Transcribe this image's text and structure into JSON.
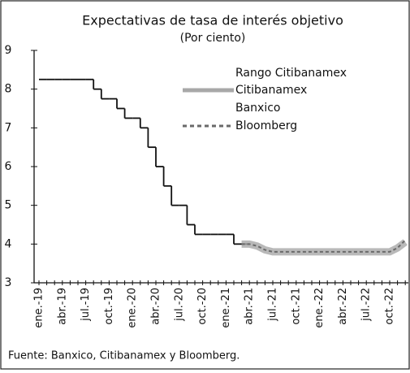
{
  "chart_data": {
    "type": "line",
    "title": "Expectativas de tasa de interés objetivo",
    "subtitle": "(Por ciento)",
    "range_label": "Rango Citibanamex",
    "source": "Fuente: Banxico, Citibanamex y Bloomberg.",
    "categories": [
      "ene.-19",
      null,
      null,
      "abr.-19",
      null,
      null,
      "jul.-19",
      null,
      null,
      "oct.-19",
      null,
      null,
      "ene.-20",
      null,
      null,
      "abr.-20",
      null,
      null,
      "jul.-20",
      null,
      null,
      "oct.-20",
      null,
      null,
      "ene.-21",
      null,
      null,
      "abr.-21",
      null,
      null,
      "jul.-21",
      null,
      null,
      "oct.-21",
      null,
      null,
      "ene.-22",
      null,
      null,
      "abr.-22",
      null,
      null,
      "jul.-22",
      null,
      null,
      "oct.-22",
      null,
      null
    ],
    "series": [
      {
        "name": "Banxico",
        "color": "#111111",
        "style": "step",
        "values": [
          8.25,
          8.25,
          8.25,
          8.25,
          8.25,
          8.25,
          8.25,
          8.0,
          7.75,
          7.75,
          7.5,
          7.25,
          7.25,
          7.0,
          6.5,
          6.0,
          5.5,
          5.0,
          5.0,
          4.5,
          4.25,
          4.25,
          4.25,
          4.25,
          4.25,
          4.0,
          4.0,
          null,
          null,
          null,
          null,
          null,
          null,
          null,
          null,
          null,
          null,
          null,
          null,
          null,
          null,
          null,
          null,
          null,
          null,
          null,
          null,
          null
        ]
      },
      {
        "name": "Citibanamex",
        "color": "#a8a8a8",
        "style": "band",
        "values": [
          null,
          null,
          null,
          null,
          null,
          null,
          null,
          null,
          null,
          null,
          null,
          null,
          null,
          null,
          null,
          null,
          null,
          null,
          null,
          null,
          null,
          null,
          null,
          null,
          null,
          null,
          4.0,
          4.0,
          3.95,
          3.85,
          3.8,
          3.8,
          3.8,
          3.8,
          3.8,
          3.8,
          3.8,
          3.8,
          3.8,
          3.8,
          3.8,
          3.8,
          3.8,
          3.8,
          3.8,
          3.8,
          3.9,
          4.05
        ]
      },
      {
        "name": "Bloomberg",
        "color": "#6a6a6a",
        "style": "dashed",
        "values": [
          null,
          null,
          null,
          null,
          null,
          null,
          null,
          null,
          null,
          null,
          null,
          null,
          null,
          null,
          null,
          null,
          null,
          null,
          null,
          null,
          null,
          null,
          null,
          null,
          null,
          null,
          4.0,
          4.0,
          3.95,
          3.85,
          3.8,
          3.8,
          3.8,
          3.8,
          3.8,
          3.8,
          3.8,
          3.8,
          3.8,
          3.8,
          3.8,
          3.8,
          3.8,
          3.8,
          3.8,
          3.8,
          3.9,
          4.1
        ]
      }
    ],
    "ylim": [
      3,
      9
    ],
    "yticks": [
      3,
      4,
      5,
      6,
      7,
      8,
      9
    ],
    "grid": false
  }
}
